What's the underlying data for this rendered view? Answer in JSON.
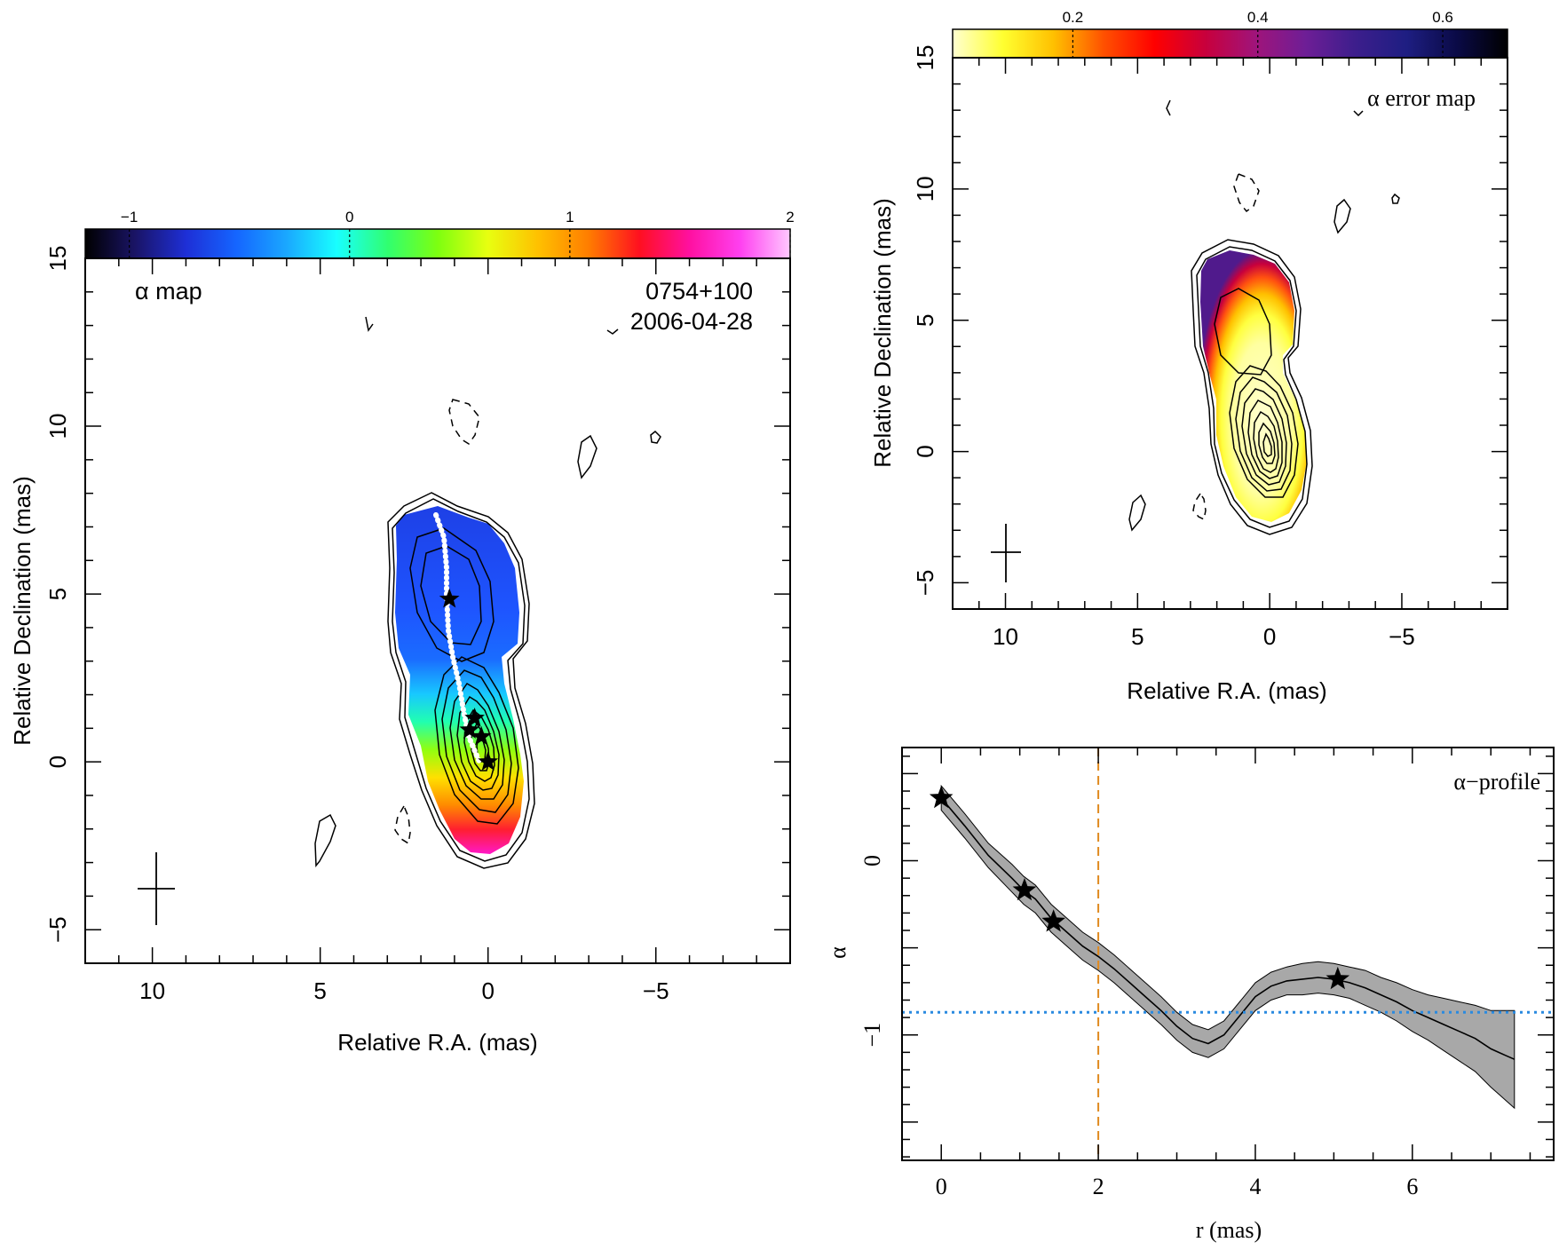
{
  "panels": {
    "alpha_map": {
      "label": "α map",
      "source": "0754+100",
      "epoch": "2006-04-28",
      "xlabel": "Relative R.A. (mas)",
      "ylabel": "Relative Declination (mas)",
      "xticks": [
        "10",
        "5",
        "0",
        "−5"
      ],
      "yticks": [
        "15",
        "10",
        "5",
        "0",
        "−5"
      ],
      "colorbar_ticks": [
        "−1",
        "0",
        "1",
        "2"
      ],
      "colormap": [
        "#000000",
        "#1a1466",
        "#1e2fd6",
        "#1565ff",
        "#1aa8ff",
        "#18ffff",
        "#30ff70",
        "#7dff10",
        "#e8ff10",
        "#ffc000",
        "#ff7d00",
        "#ff1020",
        "#ff10a0",
        "#ff40f0",
        "#ffc8ff"
      ]
    },
    "error_map": {
      "label": "α error map",
      "xlabel": "Relative R.A. (mas)",
      "ylabel": "Relative Declination (mas)",
      "xticks": [
        "10",
        "5",
        "0",
        "−5"
      ],
      "yticks": [
        "15",
        "10",
        "5",
        "0",
        "−5"
      ],
      "colorbar_ticks": [
        "0.2",
        "0.4",
        "0.6"
      ],
      "colormap": [
        "#ffffd0",
        "#ffff30",
        "#ffc000",
        "#ff5000",
        "#ff0000",
        "#c8003c",
        "#a0147a",
        "#6e1e96",
        "#3c1e8c",
        "#1e1e82",
        "#0a0a46",
        "#000000"
      ]
    }
  },
  "chart_data": [
    {
      "type": "heatmap",
      "title": "α map",
      "xlabel": "Relative R.A. (mas)",
      "ylabel": "Relative Declination (mas)",
      "xlim": [
        12,
        -9
      ],
      "ylim": [
        -6,
        15
      ],
      "colorbar_range": [
        -1.2,
        2.0
      ],
      "ridge_line_color": "#ffffff",
      "star_components": [
        {
          "x": 0.0,
          "y": 0.0
        },
        {
          "x": 0.2,
          "y": 0.75
        },
        {
          "x": 0.55,
          "y": 0.95
        },
        {
          "x": 0.4,
          "y": 1.3
        },
        {
          "x": 1.15,
          "y": 4.85
        }
      ]
    },
    {
      "type": "heatmap",
      "title": "α error map",
      "xlabel": "Relative R.A. (mas)",
      "ylabel": "Relative Declination (mas)",
      "xlim": [
        12,
        -9
      ],
      "ylim": [
        -6,
        15
      ],
      "colorbar_range": [
        0.07,
        0.67
      ]
    },
    {
      "type": "line",
      "title": "α−profile",
      "xlabel": "r (mas)",
      "ylabel": "α",
      "xlim": [
        -0.5,
        7.8
      ],
      "ylim": [
        -1.72,
        0.65
      ],
      "xticks": [
        "0",
        "2",
        "4",
        "6"
      ],
      "yticks": [
        "0",
        "−1"
      ],
      "vline_x": 2.0,
      "vline_color": "#e08a20",
      "hline_y": -0.87,
      "hline_color": "#2a8ae0",
      "band_color": "#a8a8a8",
      "x": [
        0.0,
        0.3,
        0.6,
        0.9,
        1.05,
        1.2,
        1.4,
        1.6,
        1.8,
        2.0,
        2.2,
        2.4,
        2.6,
        2.8,
        3.0,
        3.2,
        3.4,
        3.6,
        3.8,
        4.0,
        4.2,
        4.4,
        4.6,
        4.8,
        5.0,
        5.2,
        5.4,
        5.6,
        5.8,
        6.0,
        6.2,
        6.4,
        6.6,
        6.8,
        7.0,
        7.1,
        7.2,
        7.3
      ],
      "values": [
        0.36,
        0.2,
        0.03,
        -0.1,
        -0.17,
        -0.22,
        -0.33,
        -0.41,
        -0.49,
        -0.55,
        -0.62,
        -0.7,
        -0.78,
        -0.86,
        -0.95,
        -1.02,
        -1.05,
        -1.0,
        -0.89,
        -0.78,
        -0.72,
        -0.69,
        -0.68,
        -0.67,
        -0.68,
        -0.7,
        -0.73,
        -0.77,
        -0.81,
        -0.86,
        -0.9,
        -0.94,
        -0.98,
        -1.02,
        -1.08,
        -1.1,
        -1.12,
        -1.14
      ],
      "err": [
        0.07,
        0.07,
        0.07,
        0.08,
        0.08,
        0.08,
        0.08,
        0.08,
        0.08,
        0.08,
        0.08,
        0.08,
        0.08,
        0.08,
        0.08,
        0.08,
        0.08,
        0.08,
        0.08,
        0.08,
        0.08,
        0.08,
        0.09,
        0.09,
        0.09,
        0.09,
        0.1,
        0.1,
        0.11,
        0.12,
        0.13,
        0.15,
        0.17,
        0.19,
        0.22,
        0.24,
        0.26,
        0.28
      ],
      "star_components": [
        {
          "x": 0.0,
          "y": 0.36
        },
        {
          "x": 1.06,
          "y": -0.17
        },
        {
          "x": 1.43,
          "y": -0.35
        },
        {
          "x": 5.05,
          "y": -0.68
        }
      ]
    }
  ]
}
